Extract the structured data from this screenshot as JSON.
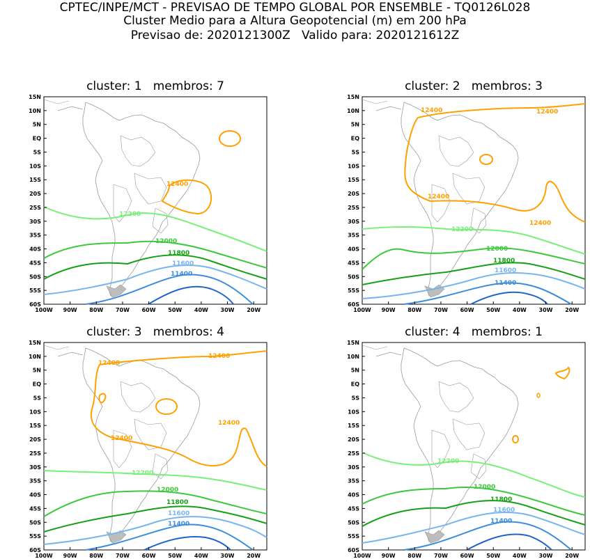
{
  "header": {
    "line1": "CPTEC/INPE/MCT - PREVISAO DE TEMPO GLOBAL POR ENSEMBLE - TQ0126L028",
    "line2": "Cluster Medio para a Altura Geopotencial (m) em 200 hPa",
    "line3": "Previsao de: 2020121300Z   Valido para: 2020121612Z"
  },
  "axes": {
    "lat_labels": [
      "15N",
      "10N",
      "5N",
      "EQ",
      "5S",
      "10S",
      "15S",
      "20S",
      "25S",
      "30S",
      "35S",
      "40S",
      "45S",
      "50S",
      "55S",
      "60S"
    ],
    "lon_labels": [
      "100W",
      "90W",
      "80W",
      "70W",
      "60W",
      "50W",
      "40W",
      "30W",
      "20W"
    ]
  },
  "colors": {
    "c12400": "#ffa000",
    "c12200": "#78f078",
    "c12000": "#3cc83c",
    "c11800": "#14a014",
    "c11600": "#78b4f0",
    "c11400": "#3c8cdc",
    "c11200": "#1e64c8",
    "coast": "#9a9a9a"
  },
  "panels": [
    {
      "title": "cluster: 1   membros: 7",
      "labels": {
        "c12400": "12400",
        "c12200": "12200",
        "c12000": "12000",
        "c11800": "11800",
        "c11600": "11600",
        "c11400": "11400"
      }
    },
    {
      "title": "cluster: 2   membros: 3",
      "labels": {
        "c12400a": "12400",
        "c12400b": "12400",
        "c12400c": "12400",
        "c12400d": "12400",
        "c12200": "12200",
        "c12000": "12000",
        "c11800": "11800",
        "c11600": "11600",
        "c11400": "11400"
      }
    },
    {
      "title": "cluster: 3   membros: 4",
      "labels": {
        "c12400a": "12400",
        "c12400b": "12400",
        "c12400c": "12400",
        "c12400d": "12400",
        "c12200": "12200",
        "c12000": "12000",
        "c11800": "11800",
        "c11600": "11600",
        "c11400": "11400"
      }
    },
    {
      "title": "cluster: 4   membros: 1",
      "labels": {
        "c12200": "12200",
        "c12000": "12000",
        "c11800": "11800",
        "c11600": "11600",
        "c11400": "11400"
      }
    }
  ]
}
